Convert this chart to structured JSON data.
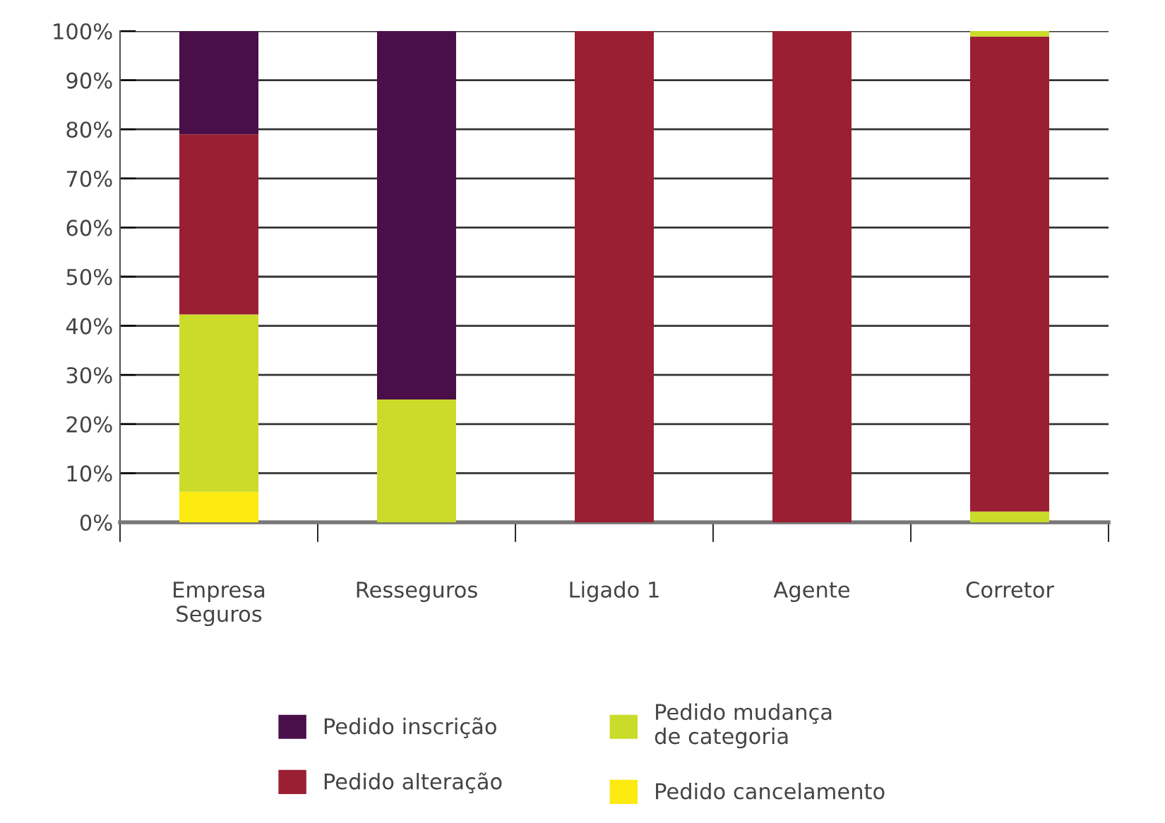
{
  "chart_data": {
    "type": "bar",
    "stacked": true,
    "categories": [
      "Empresa\nSeguros",
      "Resseguros",
      "Ligado 1",
      "Agente",
      "Corretor"
    ],
    "series": [
      {
        "name": "Pedido cancelamento",
        "color": "#fcea10",
        "values": [
          6.2,
          0,
          0,
          0,
          0
        ]
      },
      {
        "name": "Pedido mudança\nde categoria",
        "color": "#cbdb2a",
        "values": [
          36.1,
          25,
          0,
          0,
          2.2
        ]
      },
      {
        "name": "Pedido alteração",
        "color": "#9b1f33",
        "values": [
          36.7,
          0,
          100,
          100,
          96.7
        ]
      },
      {
        "color": "#cbdb2a",
        "values": [
          0,
          0,
          0,
          0,
          1.1
        ]
      },
      {
        "name": "Pedido inscrição",
        "color": "#4a0f49",
        "values": [
          21,
          75,
          0,
          0,
          0
        ]
      }
    ],
    "ylim": [
      0,
      100
    ],
    "yticks": [
      {
        "value": 0,
        "label": "0%"
      },
      {
        "value": 10,
        "label": "10%"
      },
      {
        "value": 20,
        "label": "20%"
      },
      {
        "value": 30,
        "label": "30%"
      },
      {
        "value": 40,
        "label": "40%"
      },
      {
        "value": 50,
        "label": "50%"
      },
      {
        "value": 60,
        "label": "60%"
      },
      {
        "value": 70,
        "label": "70%"
      },
      {
        "value": 80,
        "label": "80%"
      },
      {
        "value": 90,
        "label": "90%"
      },
      {
        "value": 100,
        "label": "100%"
      }
    ],
    "grid": "y",
    "legend": "bottom"
  }
}
